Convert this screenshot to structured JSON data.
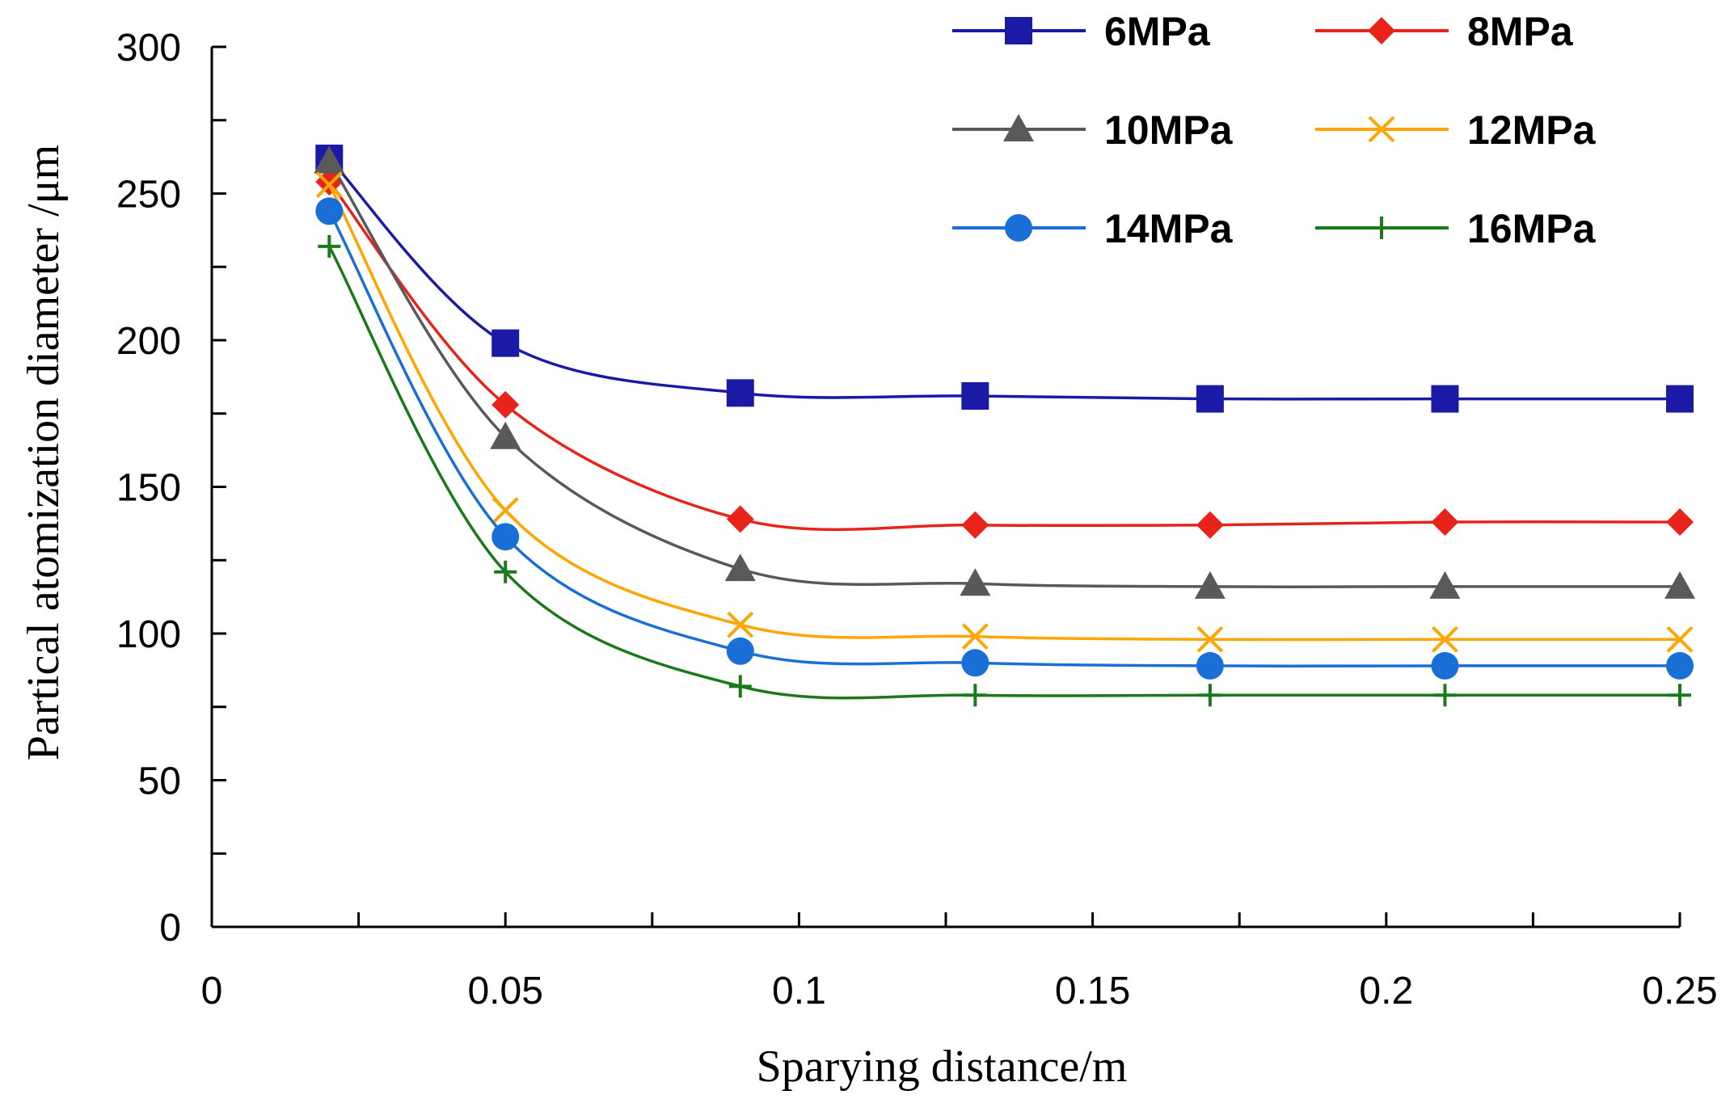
{
  "chart_data": {
    "type": "line",
    "title": "",
    "xlabel": "Sparying distance/m",
    "ylabel": "Partical atomization diameter /μm",
    "xlim": [
      0,
      0.25
    ],
    "ylim": [
      0,
      300
    ],
    "x_ticks": [
      0,
      0.05,
      0.1,
      0.15,
      0.2,
      0.25
    ],
    "x_tick_labels": [
      "0",
      "0.05",
      "0.1",
      "0.15",
      "0.2",
      "0.25"
    ],
    "y_ticks": [
      0,
      50,
      100,
      150,
      200,
      250,
      300
    ],
    "y_tick_labels": [
      "0",
      "50",
      "100",
      "150",
      "200",
      "250",
      "300"
    ],
    "grid": false,
    "legend_position": "top-right",
    "x": [
      0.02,
      0.05,
      0.09,
      0.13,
      0.17,
      0.21,
      0.25
    ],
    "series": [
      {
        "name": "6MPa",
        "color": "#1a1aa6",
        "marker": "square",
        "values": [
          262,
          199,
          182,
          181,
          180,
          180,
          180
        ]
      },
      {
        "name": "8MPa",
        "color": "#e8231a",
        "marker": "diamond",
        "values": [
          254,
          178,
          139,
          137,
          137,
          138,
          138
        ]
      },
      {
        "name": "10MPa",
        "color": "#595959",
        "marker": "triangle",
        "values": [
          261,
          167,
          122,
          117,
          116,
          116,
          116
        ]
      },
      {
        "name": "12MPa",
        "color": "#ffa500",
        "marker": "x",
        "values": [
          253,
          142,
          103,
          99,
          98,
          98,
          98
        ]
      },
      {
        "name": "14MPa",
        "color": "#1a6fd6",
        "marker": "circle",
        "values": [
          244,
          133,
          94,
          90,
          89,
          89,
          89
        ]
      },
      {
        "name": "16MPa",
        "color": "#1a7a1a",
        "marker": "plus",
        "values": [
          232,
          121,
          82,
          79,
          79,
          79,
          79
        ]
      }
    ]
  }
}
